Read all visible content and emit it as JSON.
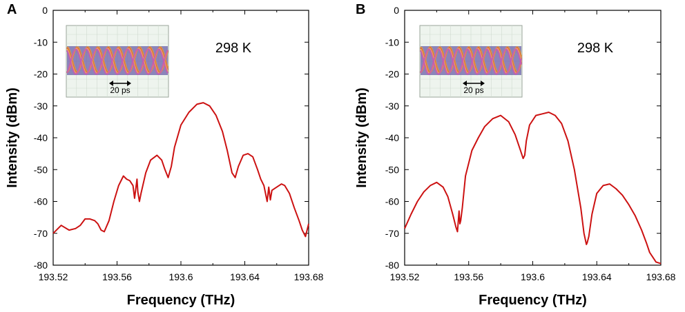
{
  "chart_data": [
    {
      "panel": "A",
      "type": "line",
      "xlabel": "Frequency (THz)",
      "ylabel": "Intensity (dBm)",
      "xlim": [
        193.52,
        193.68
      ],
      "ylim": [
        -80,
        0
      ],
      "xticks": [
        "193.52",
        "193.56",
        "193.6",
        "193.64",
        "193.68"
      ],
      "yticks": [
        "0",
        "-10",
        "-20",
        "-30",
        "-40",
        "-50",
        "-60",
        "-70",
        "-80"
      ],
      "annotation": "298 K",
      "inset_label": "20 ps",
      "color": "#cc1111",
      "series": [
        {
          "name": "spectrum",
          "x": [
            193.52,
            193.525,
            193.53,
            193.534,
            193.537,
            193.54,
            193.543,
            193.546,
            193.548,
            193.55,
            193.552,
            193.555,
            193.558,
            193.561,
            193.564,
            193.566,
            193.568,
            193.57,
            193.571,
            193.5725,
            193.573,
            193.574,
            193.575,
            193.578,
            193.581,
            193.585,
            193.588,
            193.59,
            193.592,
            193.594,
            193.596,
            193.6,
            193.605,
            193.61,
            193.614,
            193.618,
            193.622,
            193.626,
            193.629,
            193.632,
            193.634,
            193.636,
            193.639,
            193.642,
            193.645,
            193.648,
            193.65,
            193.652,
            193.654,
            193.655,
            193.656,
            193.657,
            193.66,
            193.663,
            193.665,
            193.668,
            193.671,
            193.674,
            193.676,
            193.678,
            193.68
          ],
          "y": [
            -70,
            -67.5,
            -69,
            -68.5,
            -67.5,
            -65.5,
            -65.5,
            -66,
            -67,
            -69,
            -69.5,
            -66,
            -60,
            -55,
            -52,
            -53,
            -53.5,
            -55,
            -59,
            -53,
            -57,
            -60,
            -57.5,
            -51,
            -47,
            -45.5,
            -47,
            -50,
            -52.5,
            -49,
            -43,
            -36,
            -32,
            -29.5,
            -29,
            -30,
            -33,
            -38,
            -44,
            -51,
            -52.5,
            -49,
            -45.5,
            -45,
            -46,
            -50,
            -53,
            -55,
            -60,
            -55.5,
            -59.5,
            -56.5,
            -55.5,
            -54.5,
            -55,
            -57.5,
            -62,
            -66,
            -69,
            -71,
            -67
          ]
        }
      ]
    },
    {
      "panel": "B",
      "type": "line",
      "xlabel": "Frequency (THz)",
      "ylabel": "Intensity (dBm)",
      "xlim": [
        193.52,
        193.68
      ],
      "ylim": [
        -80,
        0
      ],
      "xticks": [
        "193.52",
        "193.56",
        "193.6",
        "193.64",
        "193.68"
      ],
      "yticks": [
        "0",
        "-10",
        "-20",
        "-30",
        "-40",
        "-50",
        "-60",
        "-70",
        "-80"
      ],
      "annotation": "298 K",
      "inset_label": "20 ps",
      "color": "#cc1111",
      "series": [
        {
          "name": "spectrum",
          "x": [
            193.52,
            193.524,
            193.528,
            193.532,
            193.536,
            193.54,
            193.544,
            193.547,
            193.55,
            193.552,
            193.553,
            193.554,
            193.5545,
            193.555,
            193.556,
            193.558,
            193.562,
            193.566,
            193.57,
            193.575,
            193.58,
            193.585,
            193.589,
            193.592,
            193.594,
            193.595,
            193.596,
            193.598,
            193.602,
            193.606,
            193.61,
            193.614,
            193.618,
            193.622,
            193.626,
            193.63,
            193.632,
            193.6335,
            193.634,
            193.635,
            193.637,
            193.64,
            193.644,
            193.648,
            193.652,
            193.656,
            193.66,
            193.664,
            193.668,
            193.671,
            193.673,
            193.675,
            193.677,
            193.68
          ],
          "y": [
            -68.5,
            -64,
            -60,
            -57,
            -55,
            -54,
            -55.5,
            -58.5,
            -64,
            -68,
            -69.5,
            -63,
            -67,
            -66,
            -62,
            -52,
            -44,
            -40,
            -36.5,
            -34,
            -33,
            -35,
            -39,
            -43.5,
            -46.5,
            -45.5,
            -41,
            -36,
            -33,
            -32.5,
            -32,
            -33,
            -35.5,
            -41,
            -50,
            -62,
            -70,
            -73.5,
            -73,
            -71,
            -64,
            -57.5,
            -55,
            -54.5,
            -56,
            -58,
            -61,
            -64.5,
            -69,
            -73,
            -76,
            -77.5,
            -79,
            -79.5
          ]
        }
      ]
    }
  ]
}
